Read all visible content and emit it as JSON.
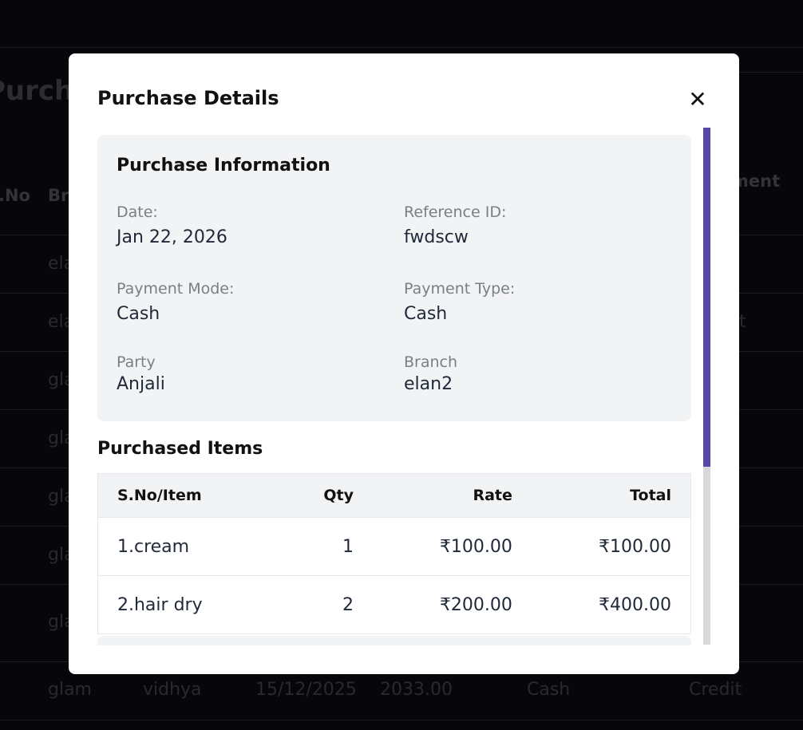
{
  "background": {
    "title": "Purchase",
    "headers": [
      ".No",
      "Br",
      "ment"
    ],
    "rows": [
      [
        "ela",
        ""
      ],
      [
        "ela",
        "t"
      ],
      [
        "gla",
        ""
      ],
      [
        "gla",
        ""
      ],
      [
        "gla",
        ""
      ],
      [
        "gla",
        ""
      ],
      [
        "gla",
        ""
      ]
    ],
    "last_row": [
      "glam",
      "vidhya",
      "15/12/2025",
      "2033.00",
      "Cash",
      "Credit"
    ]
  },
  "modal": {
    "title": "Purchase Details",
    "close_icon": "close-icon",
    "info": {
      "heading": "Purchase Information",
      "fields": [
        {
          "label": "Date:",
          "value": "Jan 22, 2026"
        },
        {
          "label": "Reference ID:",
          "value": "fwdscw"
        },
        {
          "label": "Payment Mode:",
          "value": "Cash"
        },
        {
          "label": "Payment Type:",
          "value": "Cash"
        },
        {
          "label": "Party",
          "value": "Anjali"
        },
        {
          "label": "Branch",
          "value": "elan2"
        }
      ]
    },
    "items": {
      "heading": "Purchased Items",
      "columns": [
        "S.No/Item",
        "Qty",
        "Rate",
        "Total"
      ],
      "rows": [
        [
          "1.cream",
          "1",
          "₹100.00",
          "₹100.00"
        ],
        [
          "2.hair dry",
          "2",
          "₹200.00",
          "₹400.00"
        ]
      ]
    },
    "scrollbar_color": "#5548a6"
  }
}
